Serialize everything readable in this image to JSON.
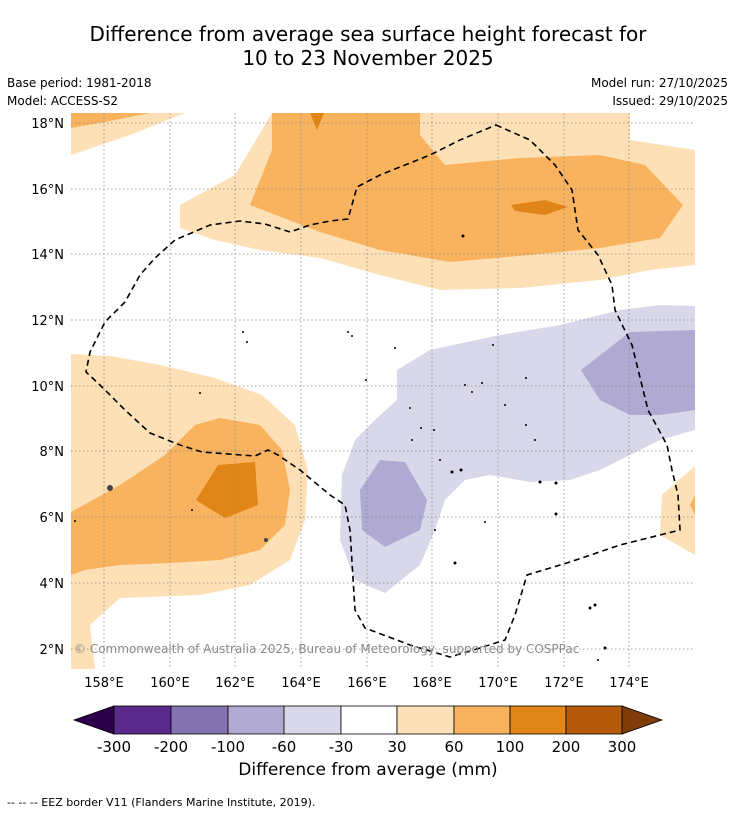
{
  "title": {
    "line1": "Difference from average sea surface height forecast for",
    "line2": "10 to 23 November 2025"
  },
  "meta": {
    "base_period": "Base period: 1981-2018",
    "model": "Model: ACCESS-S2",
    "model_run": "Model run: 27/10/2025",
    "issued": "Issued: 29/10/2025"
  },
  "map": {
    "lat_labels": [
      "18°N",
      "16°N",
      "14°N",
      "12°N",
      "10°N",
      "8°N",
      "6°N",
      "4°N",
      "2°N"
    ],
    "lon_labels": [
      "158°E",
      "160°E",
      "162°E",
      "164°E",
      "166°E",
      "168°E",
      "170°E",
      "172°E",
      "174°E"
    ],
    "copyright": "© Commonwealth of Australia 2025, Bureau of Meteorology, supported by COSPPac"
  },
  "colorbar": {
    "title": "Difference from average (mm)",
    "ticks": [
      "-300",
      "-200",
      "-100",
      "-60",
      "-30",
      "30",
      "60",
      "100",
      "200",
      "300"
    ],
    "colors": {
      "neg_extreme": "#2d004b",
      "neg300": "#5a2a8c",
      "neg200": "#8572b0",
      "neg100": "#b0a9d2",
      "neg60": "#d8d8ea",
      "neutral": "#ffffff",
      "pos30": "#fde0b6",
      "pos60": "#f9b35e",
      "pos100": "#e08518",
      "pos200": "#b55a0a",
      "pos_extreme": "#7f3b08"
    }
  },
  "footer": {
    "eez": "--  --  -- EEZ border V11 (Flanders Marine Institute, 2019)."
  }
}
